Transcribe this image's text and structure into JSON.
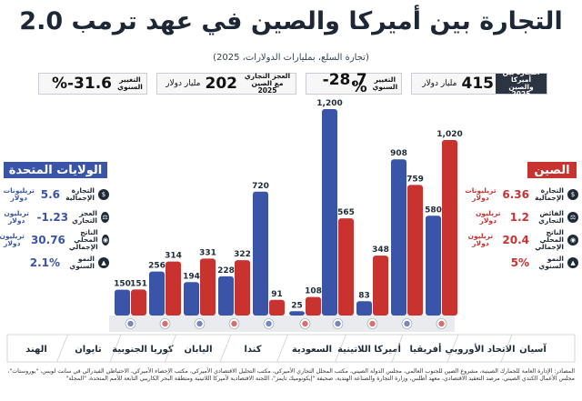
{
  "title": "التجارة بين أميركا والصين في عهد ترمب 2.0",
  "subtitle": "(تجارة السلع، بمليارات الدولارات، 2025)",
  "stats": [
    {
      "label": "التجارة بين أميركا والصين 2025",
      "value": "415",
      "unit": "مليار دولار"
    },
    {
      "label": "التغيير السنوي",
      "value": "28.7-%",
      "unit": ""
    },
    {
      "label": "العجز التجاري مع الصين 2025",
      "value": "202",
      "unit": "مليار دولار"
    },
    {
      "label": "التغيير السنوي",
      "value": "31.6-%",
      "unit": ""
    }
  ],
  "china_panel": {
    "title": "الصين",
    "items": [
      {
        "label": "التجارة الإجمالية",
        "value": "6.36",
        "unit": "تريليونات دولار"
      },
      {
        "label": "الفائض التجاري",
        "value": "1.2",
        "unit": "تريليون دولار"
      },
      {
        "label": "الناتج المحلي الإجمالي",
        "value": "20.4",
        "unit": "تريليون دولار"
      },
      {
        "label": "النمو السنوي",
        "value": "5%",
        "unit": ""
      }
    ]
  },
  "us_panel": {
    "title": "الولايات المتحدة",
    "items": [
      {
        "label": "التجارة الإجمالية",
        "value": "5.6",
        "unit": "تريليونات دولار"
      },
      {
        "label": "العجز التجاري",
        "value": "1.23-",
        "unit": "تريليون دولار"
      },
      {
        "label": "الناتج المحلي الإجمالي",
        "value": "30.76",
        "unit": "تريليون دولار"
      },
      {
        "label": "النمو السنوي",
        "value": "2.1%",
        "unit": ""
      }
    ]
  },
  "colors": {
    "us": "#3a55a8",
    "china": "#c83330",
    "dark": "#2b3440"
  },
  "chart_data": {
    "type": "bar",
    "categories": [
      "الهند",
      "تايوان",
      "كوريا الجنوبية",
      "اليابان",
      "كندا",
      "السعودية",
      "أميركا اللاتينية",
      "أفريقيا",
      "الاتحاد الأوروبي",
      "آسيان"
    ],
    "series": [
      {
        "values": [
          150,
          256,
          194,
          228,
          720,
          25,
          1200,
          83,
          908,
          580
        ]
      },
      {
        "values": [
          151,
          314,
          331,
          322,
          91,
          108,
          565,
          348,
          759,
          1020
        ]
      }
    ],
    "flag_icons": [
      "india-flag",
      "taiwan-flag",
      "south-korea-flag",
      "japan-flag",
      "canada-flag",
      "saudi-flag",
      "latin-america-globe",
      "africa-globe",
      "eu-flag",
      "asean-flag"
    ]
  },
  "footer": "المصادر: الإدارة العامة للجمارك الصينية، مشروع الصين للجنوب العالمي، مجلس الدولة الصيني، مكتب المحلل التجاري الأميركي، مكتب التحليل الاقتصادي الأميركي، مكتب الإحصاء الأميركي، الاحتياطي الفيدرالي في سانت لويس، \"يوروستات\"، مجلس الأعمال الكندي الصيني، مرصد التعقيد الاقتصادي، معهد أطلس، وزارة التجارة والصناعة الهندية، صحيفة \"إيكونوميك تايمز\"، اللجنة الاقتصادية لأميركا اللاتينية ومنطقة البحر الكاريبي التابعة للأمم المتحدة، \"المجلة\""
}
